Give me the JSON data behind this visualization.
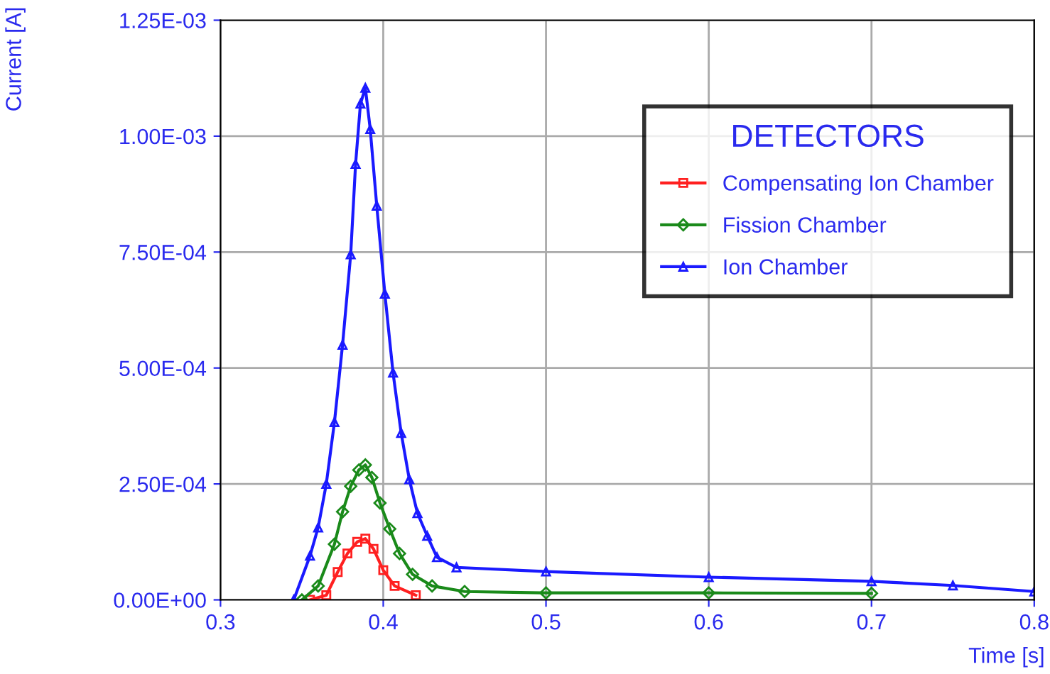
{
  "chart_data": {
    "type": "line",
    "xlabel": "Time [s]",
    "ylabel": "Current [A]",
    "legend_title": "DETECTORS",
    "legend": "top right",
    "grid": true,
    "line_style": "solid",
    "xlim": [
      0.3,
      0.8
    ],
    "xticks": [
      0.3,
      0.4,
      0.5,
      0.6,
      0.7,
      0.8
    ],
    "ylim": [
      0,
      0.00125
    ],
    "yticks": [
      {
        "value": 0,
        "label": "0.00E+00"
      },
      {
        "value": 0.00025,
        "label": "2.50E-04"
      },
      {
        "value": 0.0005,
        "label": "5.00E-04"
      },
      {
        "value": 0.00075,
        "label": "7.50E-04"
      },
      {
        "value": 0.001,
        "label": "1.00E-03"
      },
      {
        "value": 0.00125,
        "label": "1.25E-03"
      }
    ],
    "series": [
      {
        "name": "Compensating Ion Chamber",
        "color": "#ff2020",
        "marker": "square",
        "x": [
          0.355,
          0.365,
          0.372,
          0.378,
          0.384,
          0.389,
          0.394,
          0.4,
          0.407,
          0.42
        ],
        "values": [
          0,
          1e-05,
          6e-05,
          0.0001,
          0.000125,
          0.000132,
          0.00011,
          6.4e-05,
          3e-05,
          1e-05
        ]
      },
      {
        "name": "Fission Chamber",
        "color": "#1a8a1a",
        "marker": "diamond",
        "x": [
          0.35,
          0.36,
          0.37,
          0.375,
          0.38,
          0.385,
          0.389,
          0.393,
          0.398,
          0.404,
          0.41,
          0.418,
          0.43,
          0.45,
          0.5,
          0.6,
          0.7
        ],
        "values": [
          0,
          3e-05,
          0.00012,
          0.00019,
          0.000245,
          0.00028,
          0.000291,
          0.000264,
          0.000209,
          0.000153,
          0.0001,
          5.5e-05,
          3e-05,
          1.8e-05,
          1.5e-05,
          1.5e-05,
          1.4e-05
        ]
      },
      {
        "name": "Ion Chamber",
        "color": "#1a1aff",
        "marker": "triangle",
        "x": [
          0.345,
          0.355,
          0.36,
          0.365,
          0.37,
          0.375,
          0.38,
          0.383,
          0.386,
          0.389,
          0.392,
          0.396,
          0.401,
          0.406,
          0.411,
          0.416,
          0.421,
          0.427,
          0.433,
          0.445,
          0.5,
          0.6,
          0.7,
          0.75,
          0.8
        ],
        "values": [
          0,
          9.5e-05,
          0.000156,
          0.00025,
          0.000383,
          0.00055,
          0.000745,
          0.00094,
          0.00107,
          0.001104,
          0.001015,
          0.00085,
          0.00066,
          0.00049,
          0.00036,
          0.00026,
          0.000187,
          0.000138,
          9.2e-05,
          7e-05,
          6.1e-05,
          4.9e-05,
          4e-05,
          3.1e-05,
          1.8e-05
        ]
      }
    ]
  }
}
